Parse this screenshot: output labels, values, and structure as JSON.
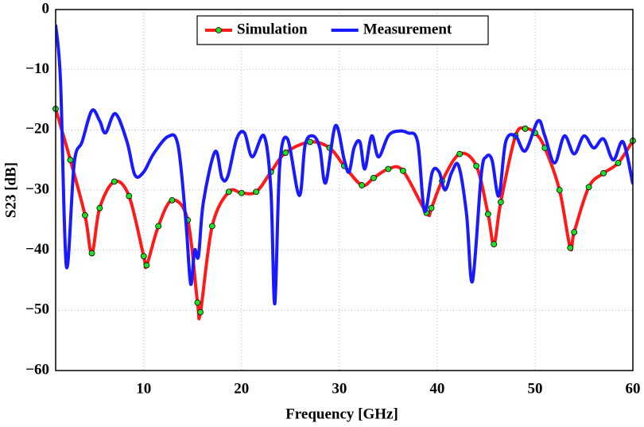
{
  "chart_data": {
    "type": "line",
    "x_label": "Frequency [GHz]",
    "y_label": "S23 [dB]",
    "xlim": [
      1,
      60
    ],
    "xticks": [
      10,
      20,
      30,
      40,
      50,
      60
    ],
    "ylim": [
      -60,
      0
    ],
    "yticks": [
      {
        "value": -60,
        "label": "−60"
      },
      {
        "value": -50,
        "label": "−50"
      },
      {
        "value": -40,
        "label": "−40"
      },
      {
        "value": -30,
        "label": "−30"
      },
      {
        "value": -20,
        "label": "−20"
      },
      {
        "value": -10,
        "label": "−10"
      },
      0
    ],
    "grid": true,
    "legend": "top",
    "series": [
      {
        "name": "Simulation",
        "color": "#ff1a1a",
        "marker_color": "#22dd22",
        "x": [
          1,
          2.5,
          4,
          4.7,
          5.5,
          7,
          8.5,
          10,
          10.3,
          11.5,
          12.9,
          14.5,
          15.5,
          15.8,
          17,
          18.7,
          20,
          21.5,
          23,
          24.5,
          27,
          29,
          30.5,
          32.3,
          33.5,
          35,
          36.5,
          38.9,
          39.4,
          40.5,
          42.3,
          44,
          45.2,
          45.8,
          46.5,
          48,
          49,
          50,
          51,
          52.5,
          53.6,
          54,
          55.5,
          57,
          58.5,
          60
        ],
        "values": [
          -16.5,
          -25,
          -34.2,
          -40.5,
          -33,
          -28.6,
          -31,
          -41,
          -42.5,
          -36,
          -31.7,
          -35,
          -48.7,
          -50.3,
          -36,
          -30.3,
          -30.5,
          -30.3,
          -27,
          -23.8,
          -22,
          -23,
          -26,
          -29.2,
          -28,
          -26.5,
          -26.8,
          -33.8,
          -33,
          -28.5,
          -24,
          -26,
          -34,
          -39,
          -32,
          -21,
          -19.8,
          -20.5,
          -23,
          -30,
          -39.6,
          -37,
          -29.5,
          -27.2,
          -25.5,
          -21.8
        ]
      },
      {
        "name": "Measurement",
        "color": "#1a1aff",
        "x": [
          1,
          1.5,
          2.1,
          2.9,
          3.7,
          4.7,
          5.5,
          6.1,
          7.1,
          8.3,
          9.1,
          10,
          11,
          12.5,
          13.5,
          14.3,
          14.8,
          15.2,
          15.6,
          16.1,
          17.3,
          18,
          18.6,
          19.5,
          20.3,
          21.1,
          22.3,
          23,
          23.4,
          23.9,
          24.7,
          25.9,
          26.5,
          27.3,
          28,
          28.6,
          29.6,
          30.5,
          31,
          31.5,
          32.1,
          32.6,
          33.3,
          34,
          35,
          36,
          37,
          38,
          38.7,
          39.5,
          40.2,
          40.8,
          41.5,
          42.2,
          43,
          43.6,
          44.5,
          45,
          45.6,
          46.3,
          47,
          48,
          49,
          50.3,
          51,
          52,
          53,
          54,
          55,
          56,
          57,
          58,
          59,
          60
        ],
        "values": [
          -2.5,
          -12,
          -42.7,
          -25.5,
          -22,
          -16.8,
          -18.5,
          -20.5,
          -17.3,
          -22,
          -27.5,
          -27,
          -24,
          -21.1,
          -22.5,
          -35,
          -45.6,
          -40,
          -41,
          -32,
          -23.6,
          -28,
          -27.7,
          -21.5,
          -20.5,
          -24.5,
          -21,
          -30,
          -48.9,
          -26,
          -21.5,
          -30.9,
          -22.5,
          -21,
          -23,
          -28.8,
          -19.3,
          -25,
          -27,
          -23,
          -22,
          -26.5,
          -21,
          -24.5,
          -21,
          -20.2,
          -20.5,
          -22,
          -33.5,
          -27,
          -27,
          -30,
          -27,
          -26,
          -34,
          -45.2,
          -27.5,
          -24.5,
          -25,
          -31,
          -22,
          -21,
          -23.5,
          -18.5,
          -21,
          -25.5,
          -21,
          -24,
          -21,
          -23,
          -21.5,
          -25,
          -22,
          -29
        ]
      }
    ]
  }
}
